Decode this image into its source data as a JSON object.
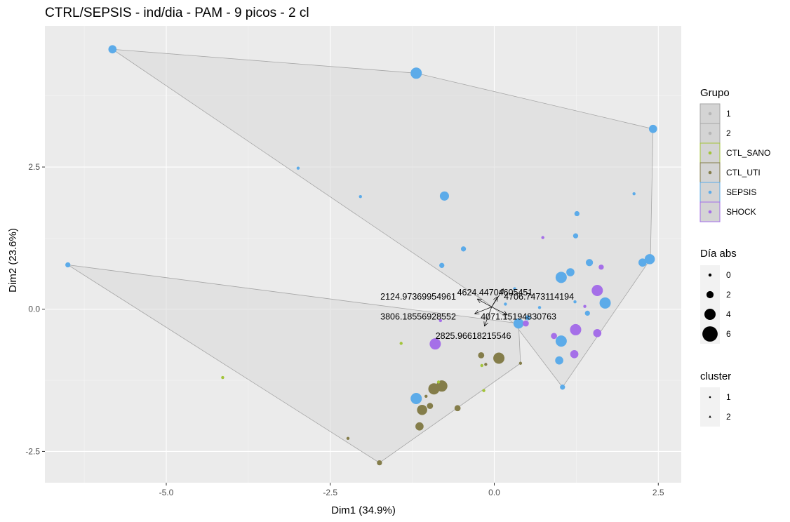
{
  "chart_data": {
    "type": "scatter",
    "title": "CTRL/SEPSIS - ind/dia - PAM - 9 picos - 2 cl",
    "xlabel": "Dim1 (34.9%)",
    "ylabel": "Dim2 (23.6%)",
    "xlim": [
      -6.85,
      2.85
    ],
    "ylim": [
      -3.05,
      4.98
    ],
    "x_ticks": [
      -5.0,
      -2.5,
      0.0,
      2.5
    ],
    "x_tick_labels": [
      "-5.0",
      "-2.5",
      "0.0",
      "2.5"
    ],
    "y_ticks": [
      -2.5,
      0.0,
      2.5
    ],
    "y_tick_labels": [
      "-2.5",
      "0.0",
      "2.5"
    ],
    "grid": true,
    "legend_placement": "right",
    "colors": {
      "panel": "#EBEBEB",
      "grid": "#FFFFFF",
      "hull_fill": "#D9D9D9",
      "hull_stroke": "#A6A6A6",
      "CTL_SANO": "#A3C43A",
      "CTL_UTI": "#847D4A",
      "SEPSIS": "#5CABE9",
      "SHOCK": "#A56FE8"
    },
    "hulls": [
      {
        "cluster": "1",
        "points": [
          [
            -5.82,
            4.57
          ],
          [
            -1.19,
            4.15
          ],
          [
            2.42,
            3.17
          ],
          [
            2.38,
            0.88
          ],
          [
            1.04,
            -1.37
          ],
          [
            0.3,
            -0.25
          ],
          [
            -0.25,
            0.23
          ],
          [
            -0.1,
            0.1
          ]
        ]
      },
      {
        "cluster": "2",
        "points": [
          [
            -6.5,
            0.78
          ],
          [
            0.37,
            -0.25
          ],
          [
            0.4,
            -0.95
          ],
          [
            -1.75,
            -2.7
          ]
        ]
      }
    ],
    "points": [
      {
        "x": -5.82,
        "y": 4.57,
        "grupo": "SEPSIS",
        "dia": 2.5
      },
      {
        "x": -1.19,
        "y": 4.15,
        "grupo": "SEPSIS",
        "dia": 4
      },
      {
        "x": 2.42,
        "y": 3.17,
        "grupo": "SEPSIS",
        "dia": 2.5
      },
      {
        "x": -2.99,
        "y": 2.48,
        "grupo": "SEPSIS",
        "dia": 0
      },
      {
        "x": -2.04,
        "y": 1.98,
        "grupo": "SEPSIS",
        "dia": 0
      },
      {
        "x": -0.76,
        "y": 1.99,
        "grupo": "SEPSIS",
        "dia": 3
      },
      {
        "x": 2.13,
        "y": 2.03,
        "grupo": "SEPSIS",
        "dia": 0
      },
      {
        "x": 1.26,
        "y": 1.68,
        "grupo": "SEPSIS",
        "dia": 1
      },
      {
        "x": 1.24,
        "y": 1.29,
        "grupo": "SEPSIS",
        "dia": 1
      },
      {
        "x": 0.74,
        "y": 1.26,
        "grupo": "SHOCK",
        "dia": 0
      },
      {
        "x": -0.47,
        "y": 1.06,
        "grupo": "SEPSIS",
        "dia": 1
      },
      {
        "x": 1.45,
        "y": 0.82,
        "grupo": "SEPSIS",
        "dia": 2
      },
      {
        "x": 1.63,
        "y": 0.74,
        "grupo": "SHOCK",
        "dia": 1
      },
      {
        "x": 2.37,
        "y": 0.88,
        "grupo": "SEPSIS",
        "dia": 3.5
      },
      {
        "x": 2.26,
        "y": 0.82,
        "grupo": "SEPSIS",
        "dia": 2.5
      },
      {
        "x": -6.5,
        "y": 0.78,
        "grupo": "SEPSIS",
        "dia": 1
      },
      {
        "x": -0.8,
        "y": 0.77,
        "grupo": "SEPSIS",
        "dia": 1
      },
      {
        "x": 1.16,
        "y": 0.65,
        "grupo": "SEPSIS",
        "dia": 2.5
      },
      {
        "x": 1.02,
        "y": 0.56,
        "grupo": "SEPSIS",
        "dia": 4
      },
      {
        "x": 0.31,
        "y": 0.36,
        "grupo": "SEPSIS",
        "dia": 0
      },
      {
        "x": 1.57,
        "y": 0.33,
        "grupo": "SHOCK",
        "dia": 4
      },
      {
        "x": 1.23,
        "y": 0.13,
        "grupo": "SEPSIS",
        "dia": 0
      },
      {
        "x": 1.69,
        "y": 0.11,
        "grupo": "SEPSIS",
        "dia": 4
      },
      {
        "x": 0.17,
        "y": 0.09,
        "grupo": "SEPSIS",
        "dia": 0
      },
      {
        "x": 1.38,
        "y": 0.05,
        "grupo": "SHOCK",
        "dia": 0
      },
      {
        "x": 0.69,
        "y": 0.03,
        "grupo": "SEPSIS",
        "dia": 0
      },
      {
        "x": 1.42,
        "y": -0.07,
        "grupo": "SEPSIS",
        "dia": 1
      },
      {
        "x": 0.51,
        "y": -0.15,
        "grupo": "SEPSIS",
        "dia": 1
      },
      {
        "x": 0.48,
        "y": -0.25,
        "grupo": "SHOCK",
        "dia": 1.5
      },
      {
        "x": 0.37,
        "y": -0.25,
        "grupo": "SEPSIS",
        "dia": 3.5
      },
      {
        "x": -0.82,
        "y": -0.2,
        "grupo": "SHOCK",
        "dia": 0
      },
      {
        "x": 1.24,
        "y": -0.36,
        "grupo": "SHOCK",
        "dia": 4
      },
      {
        "x": 1.57,
        "y": -0.42,
        "grupo": "SHOCK",
        "dia": 2.5
      },
      {
        "x": 0.91,
        "y": -0.47,
        "grupo": "SHOCK",
        "dia": 1.5
      },
      {
        "x": 1.02,
        "y": -0.56,
        "grupo": "SEPSIS",
        "dia": 4
      },
      {
        "x": -1.42,
        "y": -0.6,
        "grupo": "CTL_SANO",
        "dia": 0
      },
      {
        "x": -0.9,
        "y": -0.61,
        "grupo": "SHOCK",
        "dia": 4
      },
      {
        "x": -0.2,
        "y": -0.81,
        "grupo": "CTL_UTI",
        "dia": 1.5
      },
      {
        "x": 0.07,
        "y": -0.86,
        "grupo": "CTL_UTI",
        "dia": 4
      },
      {
        "x": 1.22,
        "y": -0.79,
        "grupo": "SHOCK",
        "dia": 2.5
      },
      {
        "x": 0.99,
        "y": -0.9,
        "grupo": "SEPSIS",
        "dia": 2.5
      },
      {
        "x": 0.4,
        "y": -0.95,
        "grupo": "CTL_UTI",
        "dia": 0
      },
      {
        "x": -0.19,
        "y": -0.99,
        "grupo": "CTL_SANO",
        "dia": 0
      },
      {
        "x": -0.13,
        "y": -0.97,
        "grupo": "CTL_UTI",
        "dia": 0
      },
      {
        "x": -4.14,
        "y": -1.2,
        "grupo": "CTL_SANO",
        "dia": 0
      },
      {
        "x": -0.85,
        "y": -1.28,
        "grupo": "CTL_SANO",
        "dia": 0
      },
      {
        "x": -0.8,
        "y": -1.35,
        "grupo": "CTL_UTI",
        "dia": 4
      },
      {
        "x": -0.92,
        "y": -1.4,
        "grupo": "CTL_UTI",
        "dia": 4
      },
      {
        "x": -0.16,
        "y": -1.43,
        "grupo": "CTL_SANO",
        "dia": 0
      },
      {
        "x": -1.04,
        "y": -1.53,
        "grupo": "CTL_UTI",
        "dia": 0
      },
      {
        "x": 1.04,
        "y": -1.37,
        "grupo": "SEPSIS",
        "dia": 1
      },
      {
        "x": -1.19,
        "y": -1.57,
        "grupo": "SEPSIS",
        "dia": 4
      },
      {
        "x": -0.98,
        "y": -1.7,
        "grupo": "CTL_UTI",
        "dia": 1.5
      },
      {
        "x": -1.1,
        "y": -1.77,
        "grupo": "CTL_UTI",
        "dia": 3.5
      },
      {
        "x": -0.56,
        "y": -1.74,
        "grupo": "CTL_UTI",
        "dia": 1.5
      },
      {
        "x": -1.14,
        "y": -2.06,
        "grupo": "CTL_UTI",
        "dia": 2.5
      },
      {
        "x": -2.23,
        "y": -2.27,
        "grupo": "CTL_UTI",
        "dia": 0
      },
      {
        "x": -1.75,
        "y": -2.7,
        "grupo": "CTL_UTI",
        "dia": 1
      }
    ],
    "annotations": [
      {
        "label": "4624.44704605451",
        "x": 0.01,
        "y": 0.29
      },
      {
        "label": "2124.97369954961",
        "x": -1.16,
        "y": 0.22
      },
      {
        "label": "4706.7473114194",
        "x": 0.68,
        "y": 0.22
      },
      {
        "label": "3806.18556928552",
        "x": -1.16,
        "y": -0.13
      },
      {
        "label": "4071.15194830763",
        "x": 0.37,
        "y": -0.13
      },
      {
        "label": "2825.96618215546",
        "x": -0.32,
        "y": -0.47
      }
    ],
    "legend_grupo": {
      "title": "Grupo",
      "entries": [
        {
          "label": "1",
          "color": "#A6A6A6"
        },
        {
          "label": "2",
          "color": "#A6A6A6"
        },
        {
          "label": "CTL_SANO",
          "color": "#A3C43A"
        },
        {
          "label": "CTL_UTI",
          "color": "#847D4A"
        },
        {
          "label": "SEPSIS",
          "color": "#5CABE9"
        },
        {
          "label": "SHOCK",
          "color": "#A56FE8"
        }
      ]
    },
    "legend_dia": {
      "title": "Día abs",
      "entries": [
        {
          "label": "0",
          "value": 0
        },
        {
          "label": "2",
          "value": 2
        },
        {
          "label": "4",
          "value": 4
        },
        {
          "label": "6",
          "value": 6
        }
      ]
    },
    "legend_cluster": {
      "title": "cluster",
      "entries": [
        {
          "label": "1",
          "shape": "circle"
        },
        {
          "label": "2",
          "shape": "triangle"
        }
      ]
    }
  }
}
